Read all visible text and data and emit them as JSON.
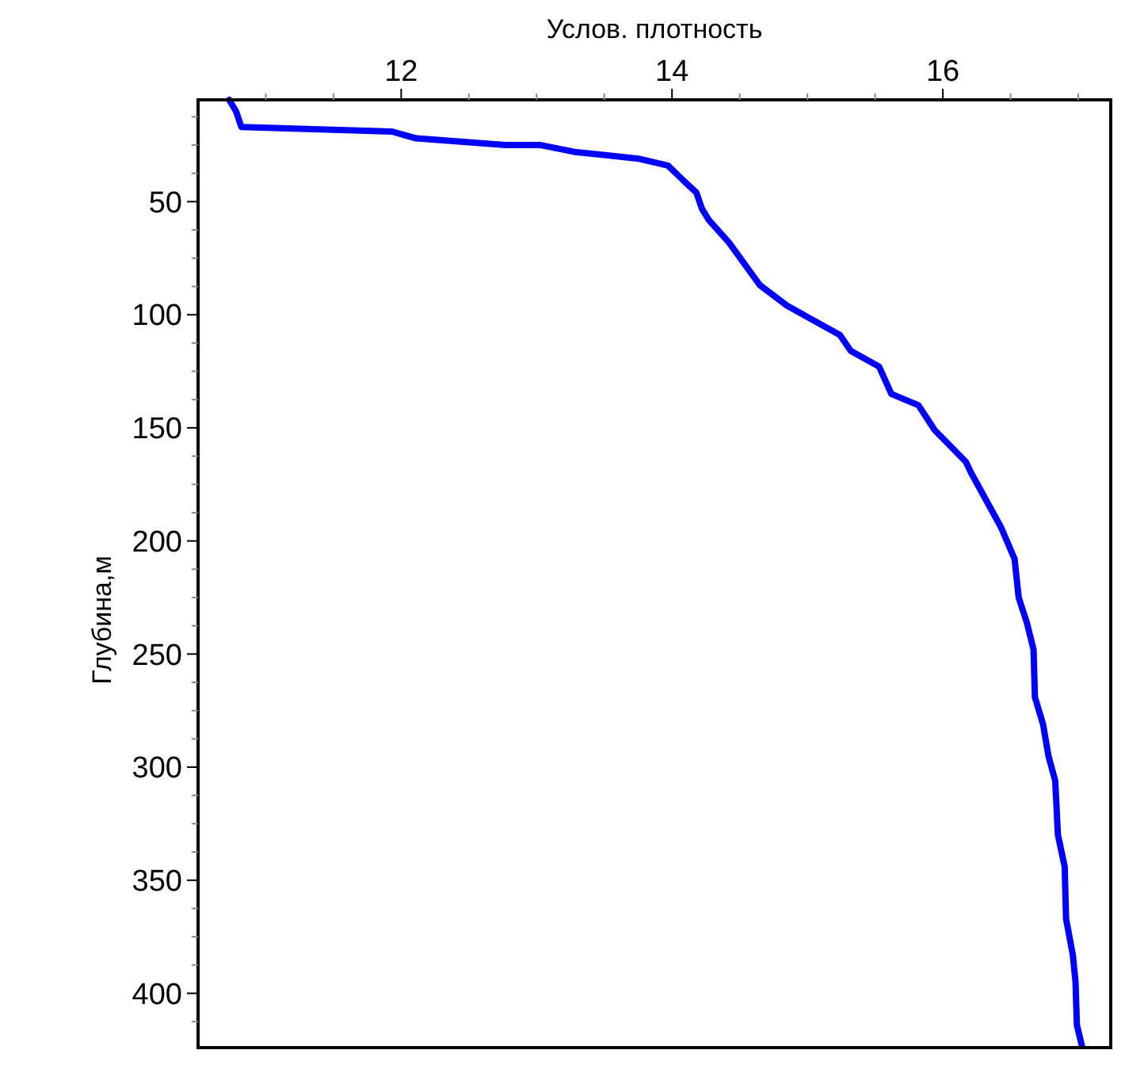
{
  "chart_data": {
    "type": "line",
    "xlabel": "Услов. плотность",
    "ylabel": "Глубина,м",
    "xlim": [
      10.5,
      17.24
    ],
    "ylim": [
      424,
      5
    ],
    "xticks": [
      {
        "value": 11,
        "label": null
      },
      {
        "value": 11.5,
        "label": null
      },
      12,
      {
        "value": 12.5,
        "label": null
      },
      {
        "value": 13,
        "label": null
      },
      {
        "value": 13.5,
        "label": null
      },
      14,
      {
        "value": 14.5,
        "label": null
      },
      {
        "value": 15,
        "label": null
      },
      {
        "value": 15.5,
        "label": null
      },
      16,
      {
        "value": 16.5,
        "label": null
      },
      {
        "value": 17,
        "label": null
      }
    ],
    "yticks": [
      {
        "value": 12.5,
        "label": null
      },
      {
        "value": 25,
        "label": null
      },
      {
        "value": 37.5,
        "label": null
      },
      50,
      {
        "value": 62.5,
        "label": null
      },
      {
        "value": 75,
        "label": null
      },
      {
        "value": 87.5,
        "label": null
      },
      100,
      {
        "value": 112.5,
        "label": null
      },
      {
        "value": 125,
        "label": null
      },
      {
        "value": 137.5,
        "label": null
      },
      150,
      {
        "value": 162.5,
        "label": null
      },
      {
        "value": 175,
        "label": null
      },
      {
        "value": 187.5,
        "label": null
      },
      200,
      {
        "value": 212.5,
        "label": null
      },
      {
        "value": 225,
        "label": null
      },
      {
        "value": 237.5,
        "label": null
      },
      250,
      {
        "value": 262.5,
        "label": null
      },
      {
        "value": 275,
        "label": null
      },
      {
        "value": 287.5,
        "label": null
      },
      300,
      {
        "value": 312.5,
        "label": null
      },
      {
        "value": 325,
        "label": null
      },
      {
        "value": 337.5,
        "label": null
      },
      350,
      {
        "value": 362.5,
        "label": null
      },
      {
        "value": 375,
        "label": null
      },
      {
        "value": 387.5,
        "label": null
      },
      400,
      {
        "value": 412.5,
        "label": null
      }
    ],
    "grid": false,
    "marker": "none",
    "line_style": "solid",
    "series": [
      {
        "color": "#0000ff",
        "x": [
          10.73,
          10.78,
          10.82,
          11.93,
          12.11,
          12.77,
          13.03,
          13.28,
          13.75,
          13.97,
          14.09,
          14.18,
          14.22,
          14.27,
          14.42,
          14.65,
          14.85,
          15.24,
          15.32,
          15.53,
          15.62,
          15.82,
          15.94,
          16.17,
          16.21,
          16.43,
          16.53,
          16.56,
          16.62,
          16.67,
          16.68,
          16.74,
          16.78,
          16.83,
          16.85,
          16.9,
          16.91,
          16.96,
          16.98,
          16.99,
          17.03
        ],
        "values": [
          5,
          10,
          17,
          19,
          22,
          25,
          25,
          28,
          31,
          34,
          41,
          46,
          53,
          58,
          68,
          87,
          96,
          109,
          116,
          123,
          135,
          140,
          151,
          165,
          170,
          194,
          208,
          225,
          236,
          248,
          269,
          281,
          295,
          306,
          330,
          344,
          367,
          383,
          395,
          414,
          424
        ]
      }
    ]
  }
}
